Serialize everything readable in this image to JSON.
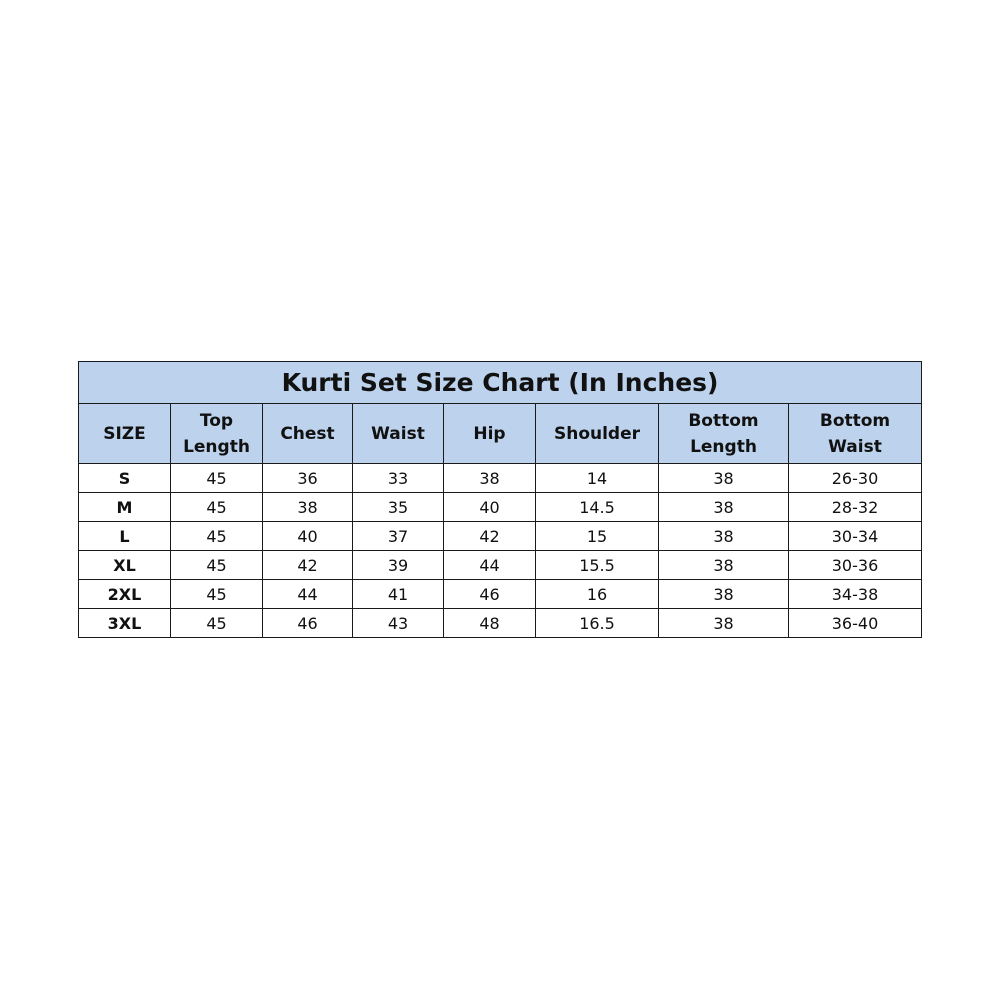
{
  "title": "Kurti Set Size Chart (In Inches)",
  "headers": [
    [
      "SIZE"
    ],
    [
      "Top",
      "Length"
    ],
    [
      "Chest"
    ],
    [
      "Waist"
    ],
    [
      "Hip"
    ],
    [
      "Shoulder"
    ],
    [
      "Bottom",
      "Length"
    ],
    [
      "Bottom",
      "Waist"
    ]
  ],
  "rows": [
    [
      "S",
      "45",
      "36",
      "33",
      "38",
      "14",
      "38",
      "26-30"
    ],
    [
      "M",
      "45",
      "38",
      "35",
      "40",
      "14.5",
      "38",
      "28-32"
    ],
    [
      "L",
      "45",
      "40",
      "37",
      "42",
      "15",
      "38",
      "30-34"
    ],
    [
      "XL",
      "45",
      "42",
      "39",
      "44",
      "15.5",
      "38",
      "30-36"
    ],
    [
      "2XL",
      "45",
      "44",
      "41",
      "46",
      "16",
      "38",
      "34-38"
    ],
    [
      "3XL",
      "45",
      "46",
      "43",
      "48",
      "16.5",
      "38",
      "36-40"
    ]
  ],
  "colors": {
    "header_bg": "#bdd2ec",
    "border": "#1a1a1a"
  }
}
